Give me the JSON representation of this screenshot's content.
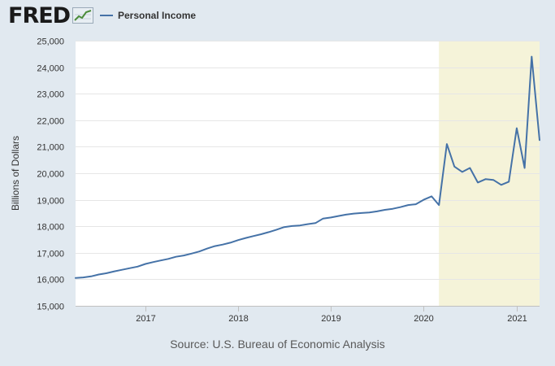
{
  "header": {
    "logo_text": "FRED",
    "logo_icon": "fred-chart-icon",
    "legend_label": "Personal Income"
  },
  "colors": {
    "background": "#e1e9f0",
    "plot_background": "#ffffff",
    "line": "#4572a7",
    "recession_shade": "#f5f3d9",
    "grid": "#e6e6e6"
  },
  "chart_data": {
    "type": "line",
    "ylabel": "Billions of Dollars",
    "ylim": [
      15000,
      25000
    ],
    "yticks": [
      15000,
      16000,
      17000,
      18000,
      19000,
      20000,
      21000,
      22000,
      23000,
      24000,
      25000
    ],
    "ytick_labels": [
      "15,000",
      "16,000",
      "17,000",
      "18,000",
      "19,000",
      "20,000",
      "21,000",
      "22,000",
      "23,000",
      "24,000",
      "25,000"
    ],
    "xlim": [
      "2016-04-01",
      "2021-04-01"
    ],
    "xticks": [
      "2017-01-01",
      "2018-01-01",
      "2019-01-01",
      "2020-01-01",
      "2021-01-01"
    ],
    "xtick_labels": [
      "2017",
      "2018",
      "2019",
      "2020",
      "2021"
    ],
    "grid": true,
    "shaded_region": {
      "start": "2020-03-01",
      "end": "2021-04-01"
    },
    "series": [
      {
        "name": "Personal Income",
        "x": [
          "2016-04-01",
          "2016-05-01",
          "2016-06-01",
          "2016-07-01",
          "2016-08-01",
          "2016-09-01",
          "2016-10-01",
          "2016-11-01",
          "2016-12-01",
          "2017-01-01",
          "2017-02-01",
          "2017-03-01",
          "2017-04-01",
          "2017-05-01",
          "2017-06-01",
          "2017-07-01",
          "2017-08-01",
          "2017-09-01",
          "2017-10-01",
          "2017-11-01",
          "2017-12-01",
          "2018-01-01",
          "2018-02-01",
          "2018-03-01",
          "2018-04-01",
          "2018-05-01",
          "2018-06-01",
          "2018-07-01",
          "2018-08-01",
          "2018-09-01",
          "2018-10-01",
          "2018-11-01",
          "2018-12-01",
          "2019-01-01",
          "2019-02-01",
          "2019-03-01",
          "2019-04-01",
          "2019-05-01",
          "2019-06-01",
          "2019-07-01",
          "2019-08-01",
          "2019-09-01",
          "2019-10-01",
          "2019-11-01",
          "2019-12-01",
          "2020-01-01",
          "2020-02-01",
          "2020-03-01",
          "2020-04-01",
          "2020-05-01",
          "2020-06-01",
          "2020-07-01",
          "2020-08-01",
          "2020-09-01",
          "2020-10-01",
          "2020-11-01",
          "2020-12-01",
          "2021-01-01",
          "2021-02-01",
          "2021-03-01",
          "2021-04-01"
        ],
        "values": [
          16050,
          16070,
          16110,
          16180,
          16230,
          16300,
          16360,
          16420,
          16480,
          16580,
          16650,
          16710,
          16770,
          16850,
          16900,
          16970,
          17050,
          17160,
          17250,
          17310,
          17380,
          17480,
          17560,
          17630,
          17700,
          17780,
          17870,
          17970,
          18010,
          18030,
          18080,
          18120,
          18290,
          18330,
          18390,
          18440,
          18480,
          18500,
          18520,
          18560,
          18620,
          18660,
          18720,
          18800,
          18830,
          19000,
          19130,
          18800,
          21100,
          20250,
          20050,
          20200,
          19650,
          19780,
          19750,
          19560,
          19680,
          21700,
          20200,
          24400,
          21250
        ]
      }
    ]
  },
  "source_text": "Source: U.S. Bureau of Economic Analysis"
}
